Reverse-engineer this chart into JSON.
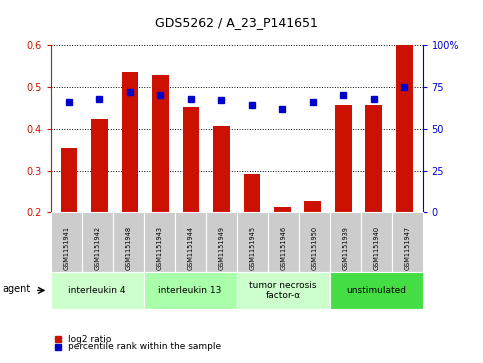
{
  "title": "GDS5262 / A_23_P141651",
  "samples": [
    "GSM1151941",
    "GSM1151942",
    "GSM1151948",
    "GSM1151943",
    "GSM1151944",
    "GSM1151949",
    "GSM1151945",
    "GSM1151946",
    "GSM1151950",
    "GSM1151939",
    "GSM1151940",
    "GSM1151947"
  ],
  "log2_ratio": [
    0.355,
    0.423,
    0.537,
    0.528,
    0.452,
    0.408,
    0.293,
    0.212,
    0.228,
    0.457,
    0.457,
    0.6
  ],
  "percentile_rank": [
    66,
    68,
    72,
    70,
    68,
    67,
    64,
    62,
    66,
    70,
    68,
    75
  ],
  "bar_color": "#cc1100",
  "dot_color": "#0000cc",
  "ylim_left": [
    0.2,
    0.6
  ],
  "ylim_right": [
    0,
    100
  ],
  "yticks_left": [
    0.2,
    0.3,
    0.4,
    0.5,
    0.6
  ],
  "yticks_right": [
    0,
    25,
    50,
    75,
    100
  ],
  "agents": [
    {
      "label": "interleukin 4",
      "start": 0,
      "end": 3,
      "color": "#ccffcc"
    },
    {
      "label": "interleukin 13",
      "start": 3,
      "end": 6,
      "color": "#aaffaa"
    },
    {
      "label": "tumor necrosis\nfactor-α",
      "start": 6,
      "end": 9,
      "color": "#ccffcc"
    },
    {
      "label": "unstimulated",
      "start": 9,
      "end": 12,
      "color": "#44dd44"
    }
  ],
  "legend_items": [
    {
      "label": "log2 ratio",
      "color": "#cc1100"
    },
    {
      "label": "percentile rank within the sample",
      "color": "#0000cc"
    }
  ],
  "bar_width": 0.55,
  "background_color": "#ffffff",
  "sample_box_color": "#cccccc",
  "right_tick_labels": [
    "0",
    "25",
    "50",
    "75",
    "100%"
  ]
}
